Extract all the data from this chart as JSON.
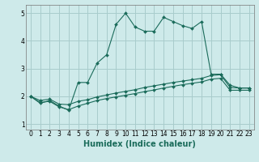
{
  "xlabel": "Humidex (Indice chaleur)",
  "bg_color": "#ceeaea",
  "grid_color": "#a8cccc",
  "line_color": "#1a6b5a",
  "xlim": [
    -0.5,
    23.5
  ],
  "ylim": [
    0.8,
    5.3
  ],
  "yticks": [
    1,
    2,
    3,
    4,
    5
  ],
  "xticks": [
    0,
    1,
    2,
    3,
    4,
    5,
    6,
    7,
    8,
    9,
    10,
    11,
    12,
    13,
    14,
    15,
    16,
    17,
    18,
    19,
    20,
    21,
    22,
    23
  ],
  "series1_x": [
    0,
    1,
    2,
    3,
    4,
    5,
    6,
    7,
    8,
    9,
    10,
    11,
    12,
    13,
    14,
    15,
    16,
    17,
    18,
    19,
    20,
    21,
    22,
    23
  ],
  "series1_y": [
    2.0,
    1.75,
    1.85,
    1.65,
    1.5,
    2.5,
    2.5,
    3.2,
    3.5,
    4.6,
    5.0,
    4.5,
    4.35,
    4.35,
    4.85,
    4.7,
    4.55,
    4.45,
    4.7,
    2.8,
    2.8,
    2.4,
    2.3,
    2.3
  ],
  "series2_x": [
    0,
    1,
    2,
    3,
    4,
    5,
    6,
    7,
    8,
    9,
    10,
    11,
    12,
    13,
    14,
    15,
    16,
    17,
    18,
    19,
    20,
    21,
    22,
    23
  ],
  "series2_y": [
    2.0,
    1.85,
    1.9,
    1.72,
    1.7,
    1.82,
    1.88,
    1.98,
    2.05,
    2.12,
    2.18,
    2.24,
    2.32,
    2.38,
    2.44,
    2.5,
    2.55,
    2.6,
    2.65,
    2.75,
    2.78,
    2.32,
    2.3,
    2.3
  ],
  "series3_x": [
    0,
    1,
    2,
    3,
    4,
    5,
    6,
    7,
    8,
    9,
    10,
    11,
    12,
    13,
    14,
    15,
    16,
    17,
    18,
    19,
    20,
    21,
    22,
    23
  ],
  "series3_y": [
    2.0,
    1.78,
    1.82,
    1.62,
    1.52,
    1.65,
    1.75,
    1.85,
    1.92,
    1.98,
    2.04,
    2.1,
    2.17,
    2.23,
    2.3,
    2.36,
    2.42,
    2.47,
    2.52,
    2.62,
    2.65,
    2.22,
    2.22,
    2.22
  ],
  "xlabel_fontsize": 7,
  "tick_fontsize": 5.5
}
